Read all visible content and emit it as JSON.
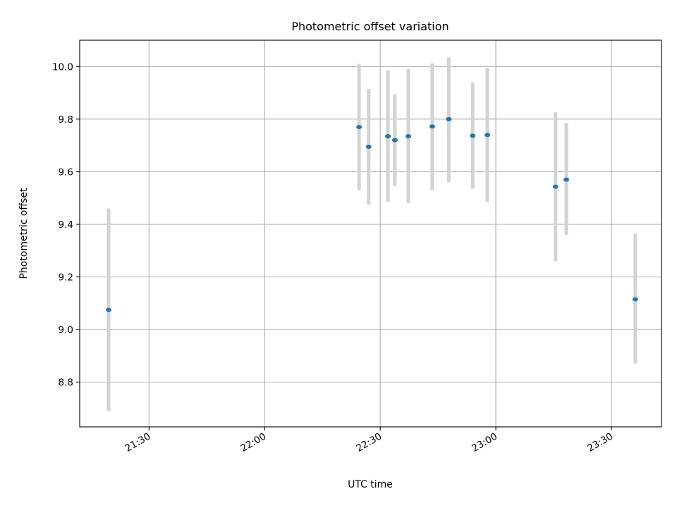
{
  "chart_data": {
    "type": "scatter",
    "title": "Photometric offset variation",
    "xlabel": "UTC time",
    "ylabel": "Photometric offset",
    "x_is_time": true,
    "xlim": [
      "21:12",
      "23:43"
    ],
    "ylim": [
      8.63,
      10.1
    ],
    "x_ticks": [
      "21:30",
      "22:00",
      "22:30",
      "23:00",
      "23:30"
    ],
    "y_ticks": [
      8.8,
      9.0,
      9.2,
      9.4,
      9.6,
      9.8,
      10.0
    ],
    "grid": true,
    "colors": {
      "point": "#1f77b4",
      "error_bar": "#d3d3d3",
      "grid": "#b0b0b0"
    },
    "points": [
      {
        "x": "21:19.5",
        "y": 9.075,
        "yerr_low": 8.69,
        "yerr_high": 9.46
      },
      {
        "x": "22:24.5",
        "y": 9.77,
        "yerr_low": 9.53,
        "yerr_high": 10.01
      },
      {
        "x": "22:27",
        "y": 9.695,
        "yerr_low": 9.475,
        "yerr_high": 9.915
      },
      {
        "x": "22:32",
        "y": 9.735,
        "yerr_low": 9.485,
        "yerr_high": 9.985
      },
      {
        "x": "22:33.8",
        "y": 9.72,
        "yerr_low": 9.545,
        "yerr_high": 9.895
      },
      {
        "x": "22:37.3",
        "y": 9.735,
        "yerr_low": 9.48,
        "yerr_high": 9.99
      },
      {
        "x": "22:43.5",
        "y": 9.772,
        "yerr_low": 9.53,
        "yerr_high": 10.012
      },
      {
        "x": "22:47.8",
        "y": 9.8,
        "yerr_low": 9.56,
        "yerr_high": 10.035
      },
      {
        "x": "22:54",
        "y": 9.737,
        "yerr_low": 9.535,
        "yerr_high": 9.94
      },
      {
        "x": "22:57.8",
        "y": 9.74,
        "yerr_low": 9.485,
        "yerr_high": 9.995
      },
      {
        "x": "23:15.5",
        "y": 9.543,
        "yerr_low": 9.26,
        "yerr_high": 9.826
      },
      {
        "x": "23:18.3",
        "y": 9.57,
        "yerr_low": 9.36,
        "yerr_high": 9.785
      },
      {
        "x": "23:36.2",
        "y": 9.115,
        "yerr_low": 8.87,
        "yerr_high": 9.365
      }
    ]
  }
}
